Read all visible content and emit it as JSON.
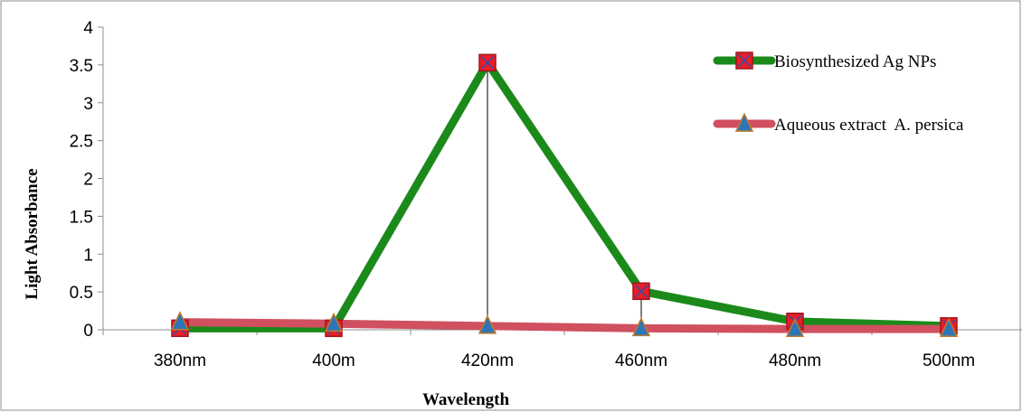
{
  "chart_data": {
    "type": "line",
    "categories": [
      "380nm",
      "400m",
      "420nm",
      "460nm",
      "480nm",
      "500nm"
    ],
    "xlabel": "Wavelength",
    "ylabel": "Light Absorbance",
    "ylim": [
      0,
      4
    ],
    "yticks": [
      "0",
      "0.5",
      "1",
      "1.5",
      "2",
      "2.5",
      "3",
      "3.5",
      "4"
    ],
    "grid": false,
    "legend_position": "top-right",
    "series": [
      {
        "name": "Biosynthesized Ag NPs",
        "values": [
          0.02,
          0.02,
          3.53,
          0.51,
          0.11,
          0.05
        ],
        "color": "#1b8a1b",
        "marker": "square-x",
        "marker_color": "#ee1c24"
      },
      {
        "name": "Aqueous extract  A. persica",
        "values": [
          0.1,
          0.08,
          0.05,
          0.02,
          0.01,
          0.01
        ],
        "color": "#d05060",
        "marker": "triangle",
        "marker_color": "#2e75b6"
      }
    ],
    "drop_lines": true
  }
}
